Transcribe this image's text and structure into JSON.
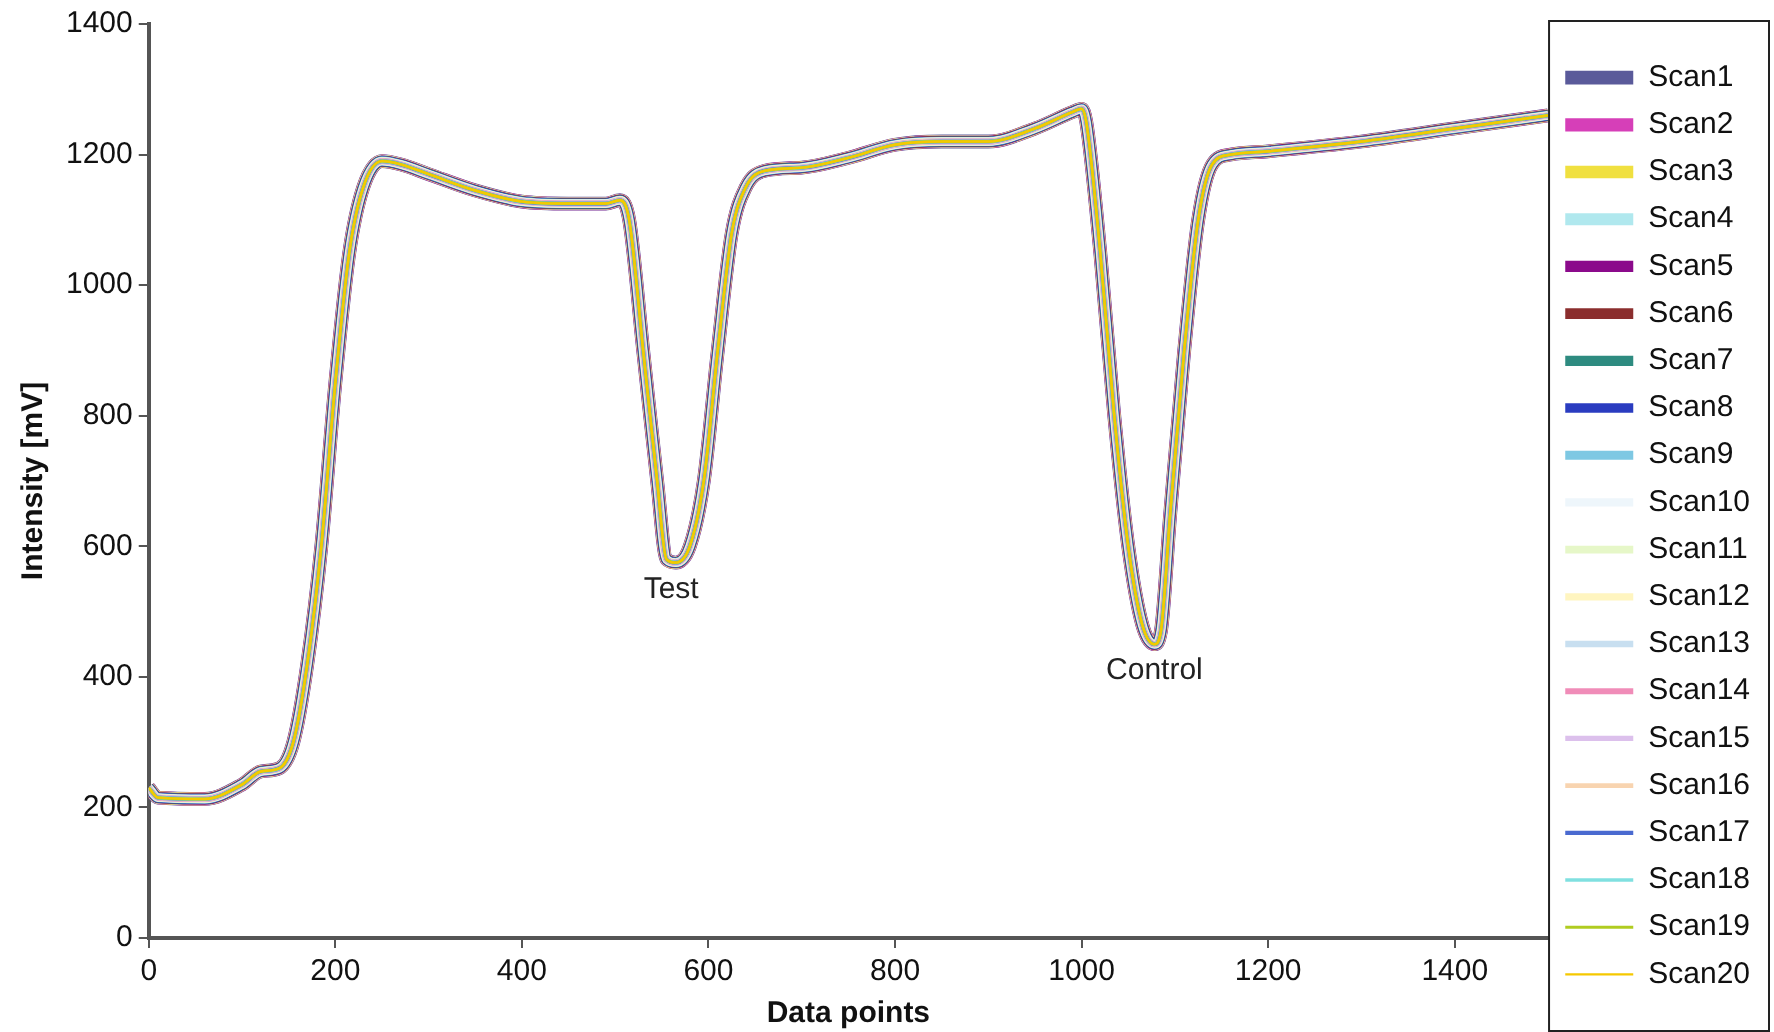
{
  "chart_data": {
    "type": "line",
    "xlabel": "Data points",
    "ylabel": "Intensity [mV]",
    "x": [
      0,
      10,
      60,
      100,
      120,
      140,
      155,
      170,
      185,
      200,
      215,
      230,
      250,
      270,
      300,
      350,
      400,
      450,
      490,
      505,
      515,
      530,
      545,
      555,
      565,
      580,
      595,
      610,
      625,
      640,
      660,
      700,
      750,
      800,
      850,
      900,
      950,
      990,
      1000,
      1005,
      1020,
      1035,
      1050,
      1065,
      1078,
      1085,
      1095,
      1110,
      1125,
      1140,
      1160,
      1200,
      1300,
      1400,
      1500
    ],
    "xlim": [
      0,
      1500
    ],
    "xticks": [
      0,
      200,
      400,
      600,
      800,
      1000,
      1200,
      1400
    ],
    "ylim": [
      0,
      1400
    ],
    "yticks": [
      0,
      200,
      400,
      600,
      800,
      1000,
      1200,
      1400
    ],
    "grid": false,
    "legend": "right",
    "marker": "none",
    "line_style": "solid",
    "annotations": [
      {
        "text": "Test",
        "x": 560,
        "y": 575
      },
      {
        "text": "Control",
        "x": 1078,
        "y": 450
      }
    ],
    "series": [
      {
        "name": "Scan1",
        "color": "#5a5a9a",
        "values": [
          230,
          215,
          213,
          235,
          255,
          260,
          300,
          420,
          600,
          850,
          1050,
          1150,
          1190,
          1185,
          1170,
          1145,
          1128,
          1125,
          1125,
          1130,
          1100,
          900,
          700,
          580,
          575,
          600,
          700,
          900,
          1080,
          1150,
          1175,
          1180,
          1195,
          1215,
          1220,
          1220,
          1240,
          1265,
          1270,
          1250,
          1050,
          800,
          600,
          480,
          450,
          470,
          650,
          900,
          1100,
          1185,
          1200,
          1205,
          1220,
          1240,
          1260
        ]
      },
      {
        "name": "Scan2",
        "color": "#d63fb8",
        "values": [
          230,
          215,
          213,
          235,
          255,
          260,
          300,
          420,
          600,
          850,
          1050,
          1150,
          1190,
          1185,
          1170,
          1145,
          1128,
          1125,
          1125,
          1130,
          1100,
          900,
          700,
          580,
          575,
          600,
          700,
          900,
          1080,
          1150,
          1175,
          1180,
          1195,
          1215,
          1220,
          1220,
          1240,
          1265,
          1270,
          1250,
          1050,
          800,
          600,
          480,
          450,
          470,
          650,
          900,
          1100,
          1185,
          1200,
          1205,
          1220,
          1240,
          1260
        ]
      },
      {
        "name": "Scan3",
        "color": "#f0e040",
        "values": [
          230,
          215,
          213,
          235,
          255,
          260,
          300,
          420,
          600,
          850,
          1050,
          1150,
          1190,
          1185,
          1170,
          1145,
          1128,
          1125,
          1125,
          1130,
          1100,
          900,
          700,
          580,
          575,
          600,
          700,
          900,
          1080,
          1150,
          1175,
          1180,
          1195,
          1215,
          1220,
          1220,
          1240,
          1265,
          1270,
          1250,
          1050,
          800,
          600,
          480,
          450,
          470,
          650,
          900,
          1100,
          1185,
          1200,
          1205,
          1220,
          1240,
          1260
        ]
      },
      {
        "name": "Scan4",
        "color": "#b0e8ee",
        "values": [
          230,
          215,
          213,
          235,
          255,
          260,
          300,
          420,
          600,
          850,
          1050,
          1150,
          1190,
          1185,
          1170,
          1145,
          1128,
          1125,
          1125,
          1130,
          1100,
          900,
          700,
          580,
          575,
          600,
          700,
          900,
          1080,
          1150,
          1175,
          1180,
          1195,
          1215,
          1220,
          1220,
          1240,
          1265,
          1270,
          1250,
          1050,
          800,
          600,
          480,
          450,
          470,
          650,
          900,
          1100,
          1185,
          1200,
          1205,
          1220,
          1240,
          1260
        ]
      },
      {
        "name": "Scan5",
        "color": "#8b0a8b",
        "values": [
          230,
          215,
          213,
          235,
          255,
          260,
          300,
          420,
          600,
          850,
          1050,
          1150,
          1190,
          1185,
          1170,
          1145,
          1128,
          1125,
          1125,
          1130,
          1100,
          900,
          700,
          580,
          575,
          600,
          700,
          900,
          1080,
          1150,
          1175,
          1180,
          1195,
          1215,
          1220,
          1220,
          1240,
          1265,
          1270,
          1250,
          1050,
          800,
          600,
          480,
          450,
          470,
          650,
          900,
          1100,
          1185,
          1200,
          1205,
          1220,
          1240,
          1260
        ]
      },
      {
        "name": "Scan6",
        "color": "#8b2e2e",
        "values": [
          230,
          215,
          213,
          235,
          255,
          260,
          300,
          420,
          600,
          850,
          1050,
          1150,
          1190,
          1185,
          1170,
          1145,
          1128,
          1125,
          1125,
          1130,
          1100,
          900,
          700,
          580,
          575,
          600,
          700,
          900,
          1080,
          1150,
          1175,
          1180,
          1195,
          1215,
          1220,
          1220,
          1240,
          1265,
          1270,
          1250,
          1050,
          800,
          600,
          480,
          450,
          470,
          650,
          900,
          1100,
          1185,
          1200,
          1205,
          1220,
          1240,
          1260
        ]
      },
      {
        "name": "Scan7",
        "color": "#2e8b80",
        "values": [
          230,
          215,
          213,
          235,
          255,
          260,
          300,
          420,
          600,
          850,
          1050,
          1150,
          1190,
          1185,
          1170,
          1145,
          1128,
          1125,
          1125,
          1130,
          1100,
          900,
          700,
          580,
          575,
          600,
          700,
          900,
          1080,
          1150,
          1175,
          1180,
          1195,
          1215,
          1220,
          1220,
          1240,
          1265,
          1270,
          1250,
          1050,
          800,
          600,
          480,
          450,
          470,
          650,
          900,
          1100,
          1185,
          1200,
          1205,
          1220,
          1240,
          1260
        ]
      },
      {
        "name": "Scan8",
        "color": "#2a3cc0",
        "values": [
          230,
          215,
          213,
          235,
          255,
          260,
          300,
          420,
          600,
          850,
          1050,
          1150,
          1190,
          1185,
          1170,
          1145,
          1128,
          1125,
          1125,
          1130,
          1100,
          900,
          700,
          580,
          575,
          600,
          700,
          900,
          1080,
          1150,
          1175,
          1180,
          1195,
          1215,
          1220,
          1220,
          1240,
          1265,
          1270,
          1250,
          1050,
          800,
          600,
          480,
          450,
          470,
          650,
          900,
          1100,
          1185,
          1200,
          1205,
          1220,
          1240,
          1260
        ]
      },
      {
        "name": "Scan9",
        "color": "#7ec8e3",
        "values": [
          230,
          215,
          213,
          235,
          255,
          260,
          300,
          420,
          600,
          850,
          1050,
          1150,
          1190,
          1185,
          1170,
          1145,
          1128,
          1125,
          1125,
          1130,
          1100,
          900,
          700,
          580,
          575,
          600,
          700,
          900,
          1080,
          1150,
          1175,
          1180,
          1195,
          1215,
          1220,
          1220,
          1240,
          1265,
          1270,
          1250,
          1050,
          800,
          600,
          480,
          450,
          470,
          650,
          900,
          1100,
          1185,
          1200,
          1205,
          1220,
          1240,
          1260
        ]
      },
      {
        "name": "Scan10",
        "color": "#eef6fb",
        "values": [
          230,
          215,
          213,
          235,
          255,
          260,
          300,
          420,
          600,
          850,
          1050,
          1150,
          1190,
          1185,
          1170,
          1145,
          1128,
          1125,
          1125,
          1130,
          1100,
          900,
          700,
          580,
          575,
          600,
          700,
          900,
          1080,
          1150,
          1175,
          1180,
          1195,
          1215,
          1220,
          1220,
          1240,
          1265,
          1270,
          1250,
          1050,
          800,
          600,
          480,
          450,
          470,
          650,
          900,
          1100,
          1185,
          1200,
          1205,
          1220,
          1240,
          1260
        ]
      },
      {
        "name": "Scan11",
        "color": "#e6f7c8",
        "values": [
          230,
          215,
          213,
          235,
          255,
          260,
          300,
          420,
          600,
          850,
          1050,
          1150,
          1190,
          1185,
          1170,
          1145,
          1128,
          1125,
          1125,
          1130,
          1100,
          900,
          700,
          580,
          575,
          600,
          700,
          900,
          1080,
          1150,
          1175,
          1180,
          1195,
          1215,
          1220,
          1220,
          1240,
          1265,
          1270,
          1250,
          1050,
          800,
          600,
          480,
          450,
          470,
          650,
          900,
          1100,
          1185,
          1200,
          1205,
          1220,
          1240,
          1260
        ]
      },
      {
        "name": "Scan12",
        "color": "#fff5c0",
        "values": [
          230,
          215,
          213,
          235,
          255,
          260,
          300,
          420,
          600,
          850,
          1050,
          1150,
          1190,
          1185,
          1170,
          1145,
          1128,
          1125,
          1125,
          1130,
          1100,
          900,
          700,
          580,
          575,
          600,
          700,
          900,
          1080,
          1150,
          1175,
          1180,
          1195,
          1215,
          1220,
          1220,
          1240,
          1265,
          1270,
          1250,
          1050,
          800,
          600,
          480,
          450,
          470,
          650,
          900,
          1100,
          1185,
          1200,
          1205,
          1220,
          1240,
          1260
        ]
      },
      {
        "name": "Scan13",
        "color": "#c8dff0",
        "values": [
          230,
          215,
          213,
          235,
          255,
          260,
          300,
          420,
          600,
          850,
          1050,
          1150,
          1190,
          1185,
          1170,
          1145,
          1128,
          1125,
          1125,
          1130,
          1100,
          900,
          700,
          580,
          575,
          600,
          700,
          900,
          1080,
          1150,
          1175,
          1180,
          1195,
          1215,
          1220,
          1220,
          1240,
          1265,
          1270,
          1250,
          1050,
          800,
          600,
          480,
          450,
          470,
          650,
          900,
          1100,
          1185,
          1200,
          1205,
          1220,
          1240,
          1260
        ]
      },
      {
        "name": "Scan14",
        "color": "#f08cb8",
        "values": [
          230,
          215,
          213,
          235,
          255,
          260,
          300,
          420,
          600,
          850,
          1050,
          1150,
          1190,
          1185,
          1170,
          1145,
          1128,
          1125,
          1125,
          1130,
          1100,
          900,
          700,
          580,
          575,
          600,
          700,
          900,
          1080,
          1150,
          1175,
          1180,
          1195,
          1215,
          1220,
          1220,
          1240,
          1265,
          1270,
          1250,
          1050,
          800,
          600,
          480,
          450,
          470,
          650,
          900,
          1100,
          1185,
          1200,
          1205,
          1220,
          1240,
          1260
        ]
      },
      {
        "name": "Scan15",
        "color": "#dcc0ec",
        "values": [
          230,
          215,
          213,
          235,
          255,
          260,
          300,
          420,
          600,
          850,
          1050,
          1150,
          1190,
          1185,
          1170,
          1145,
          1128,
          1125,
          1125,
          1130,
          1100,
          900,
          700,
          580,
          575,
          600,
          700,
          900,
          1080,
          1150,
          1175,
          1180,
          1195,
          1215,
          1220,
          1220,
          1240,
          1265,
          1270,
          1250,
          1050,
          800,
          600,
          480,
          450,
          470,
          650,
          900,
          1100,
          1185,
          1200,
          1205,
          1220,
          1240,
          1260
        ]
      },
      {
        "name": "Scan16",
        "color": "#f8d4b0",
        "values": [
          230,
          215,
          213,
          235,
          255,
          260,
          300,
          420,
          600,
          850,
          1050,
          1150,
          1190,
          1185,
          1170,
          1145,
          1128,
          1125,
          1125,
          1130,
          1100,
          900,
          700,
          580,
          575,
          600,
          700,
          900,
          1080,
          1150,
          1175,
          1180,
          1195,
          1215,
          1220,
          1220,
          1240,
          1265,
          1270,
          1250,
          1050,
          800,
          600,
          480,
          450,
          470,
          650,
          900,
          1100,
          1185,
          1200,
          1205,
          1220,
          1240,
          1260
        ]
      },
      {
        "name": "Scan17",
        "color": "#4a6ad0",
        "values": [
          230,
          215,
          213,
          235,
          255,
          260,
          300,
          420,
          600,
          850,
          1050,
          1150,
          1190,
          1185,
          1170,
          1145,
          1128,
          1125,
          1125,
          1130,
          1100,
          900,
          700,
          580,
          575,
          600,
          700,
          900,
          1080,
          1150,
          1175,
          1180,
          1195,
          1215,
          1220,
          1220,
          1240,
          1265,
          1270,
          1250,
          1050,
          800,
          600,
          480,
          450,
          470,
          650,
          900,
          1100,
          1185,
          1200,
          1205,
          1220,
          1240,
          1260
        ]
      },
      {
        "name": "Scan18",
        "color": "#80e0e0",
        "values": [
          230,
          215,
          213,
          235,
          255,
          260,
          300,
          420,
          600,
          850,
          1050,
          1150,
          1190,
          1185,
          1170,
          1145,
          1128,
          1125,
          1125,
          1130,
          1100,
          900,
          700,
          580,
          575,
          600,
          700,
          900,
          1080,
          1150,
          1175,
          1180,
          1195,
          1215,
          1220,
          1220,
          1240,
          1265,
          1270,
          1250,
          1050,
          800,
          600,
          480,
          450,
          470,
          650,
          900,
          1100,
          1185,
          1200,
          1205,
          1220,
          1240,
          1260
        ]
      },
      {
        "name": "Scan19",
        "color": "#b0cc20",
        "values": [
          230,
          215,
          213,
          235,
          255,
          260,
          300,
          420,
          600,
          850,
          1050,
          1150,
          1190,
          1185,
          1170,
          1145,
          1128,
          1125,
          1125,
          1130,
          1100,
          900,
          700,
          580,
          575,
          600,
          700,
          900,
          1080,
          1150,
          1175,
          1180,
          1195,
          1215,
          1220,
          1220,
          1240,
          1265,
          1270,
          1250,
          1050,
          800,
          600,
          480,
          450,
          470,
          650,
          900,
          1100,
          1185,
          1200,
          1205,
          1220,
          1240,
          1260
        ]
      },
      {
        "name": "Scan20",
        "color": "#f5c800",
        "values": [
          230,
          215,
          213,
          235,
          255,
          260,
          300,
          420,
          600,
          850,
          1050,
          1150,
          1190,
          1185,
          1170,
          1145,
          1128,
          1125,
          1125,
          1130,
          1100,
          900,
          700,
          580,
          575,
          600,
          700,
          900,
          1080,
          1150,
          1175,
          1180,
          1195,
          1215,
          1220,
          1220,
          1240,
          1265,
          1270,
          1250,
          1050,
          800,
          600,
          480,
          450,
          470,
          650,
          900,
          1100,
          1185,
          1200,
          1205,
          1220,
          1240,
          1260
        ]
      }
    ]
  }
}
